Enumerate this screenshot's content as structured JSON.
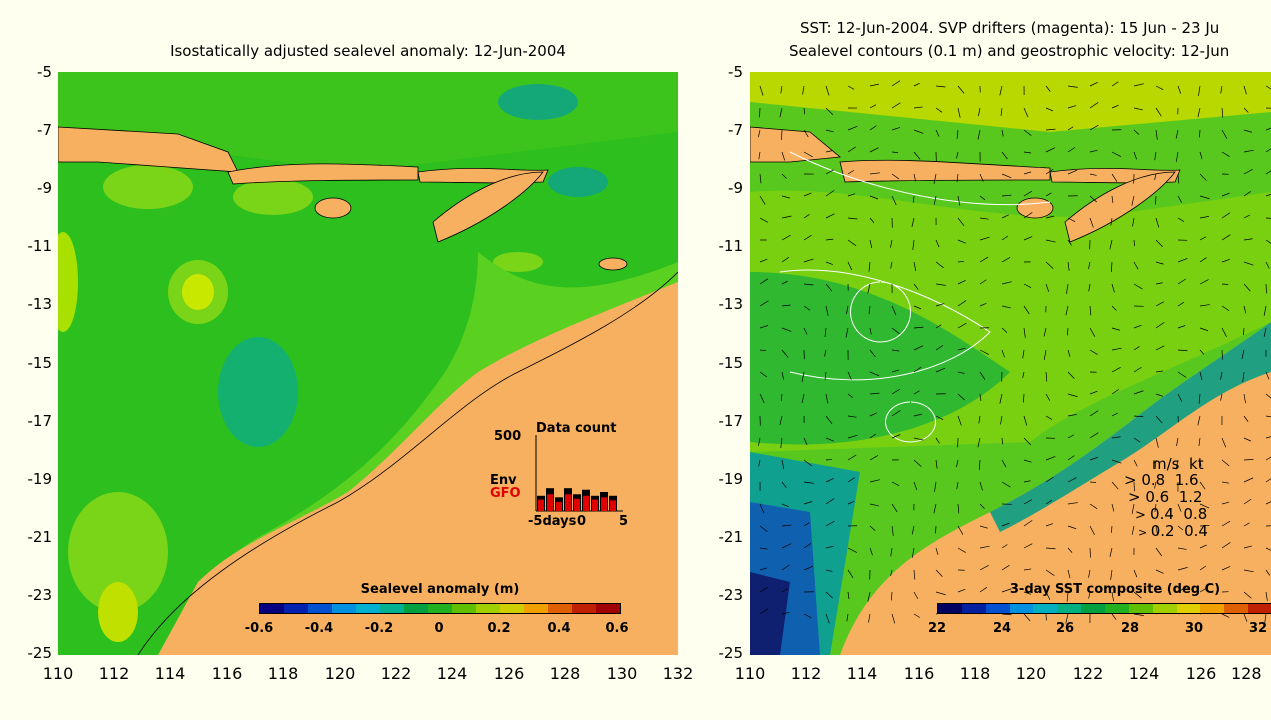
{
  "left_panel": {
    "title": "Isostatically adjusted sealevel anomaly: 12-Jun-2004",
    "colorbar": {
      "title": "Sealevel anomaly (m)",
      "ticks": [
        "-0.6",
        "-0.4",
        "-0.2",
        "0",
        "0.2",
        "0.4",
        "0.6"
      ],
      "colors": [
        "#000080",
        "#0020b0",
        "#0050d0",
        "#0090e0",
        "#00b0d0",
        "#00b090",
        "#00a040",
        "#20b020",
        "#60c000",
        "#a0d000",
        "#d0d000",
        "#f0a000",
        "#e06000",
        "#c02000",
        "#a00000"
      ]
    },
    "histogram": {
      "title": "Data count",
      "max_label": "500",
      "series": [
        "Env",
        "GFO"
      ],
      "series_colors": [
        "#000000",
        "#e00000"
      ],
      "x_ticks": [
        "-5days",
        "0",
        "5"
      ],
      "counts_env": [
        0.2,
        0.3,
        0.18,
        0.3,
        0.22,
        0.28,
        0.2,
        0.25,
        0.2
      ],
      "counts_gfo": [
        0.15,
        0.22,
        0.12,
        0.22,
        0.16,
        0.2,
        0.15,
        0.18,
        0.14
      ]
    }
  },
  "right_panel": {
    "title_line1": "SST: 12-Jun-2004. SVP drifters (magenta): 15 Jun - 23 Ju",
    "title_line2": "Sealevel contours (0.1 m) and geostrophic velocity: 12-Jun",
    "colorbar": {
      "title": "3-day SST composite (deg C)",
      "ticks": [
        "22",
        "24",
        "26",
        "28",
        "30",
        "32"
      ],
      "colors": [
        "#000060",
        "#0020a0",
        "#0050d0",
        "#0090e0",
        "#00b0c0",
        "#00b080",
        "#00a040",
        "#20b020",
        "#60c000",
        "#a0d000",
        "#e0d000",
        "#f0a000",
        "#e06000",
        "#c02000"
      ]
    },
    "velocity_legend": {
      "header": "m/s  kt",
      "rows": [
        "0.8  1.6",
        "0.6  1.2",
        "0.4  0.8",
        "0.2  0.4"
      ]
    }
  },
  "y_ticks": [
    "-5",
    "-7",
    "-9",
    "-11",
    "-13",
    "-15",
    "-17",
    "-19",
    "-21",
    "-23",
    "-25"
  ],
  "x_ticks_left": [
    "110",
    "112",
    "114",
    "116",
    "118",
    "120",
    "122",
    "124",
    "126",
    "128",
    "130",
    "132"
  ],
  "x_ticks_right": [
    "110",
    "112",
    "114",
    "116",
    "118",
    "120",
    "122",
    "124",
    "126",
    "128"
  ],
  "colors": {
    "land": "#f6b060",
    "ocean_green": "#2cbf1e",
    "ocean_light": "#5ad020",
    "ocean_cyan": "#14b070",
    "yellow_green": "#a8e000",
    "sst_deep_blue": "#103080"
  }
}
